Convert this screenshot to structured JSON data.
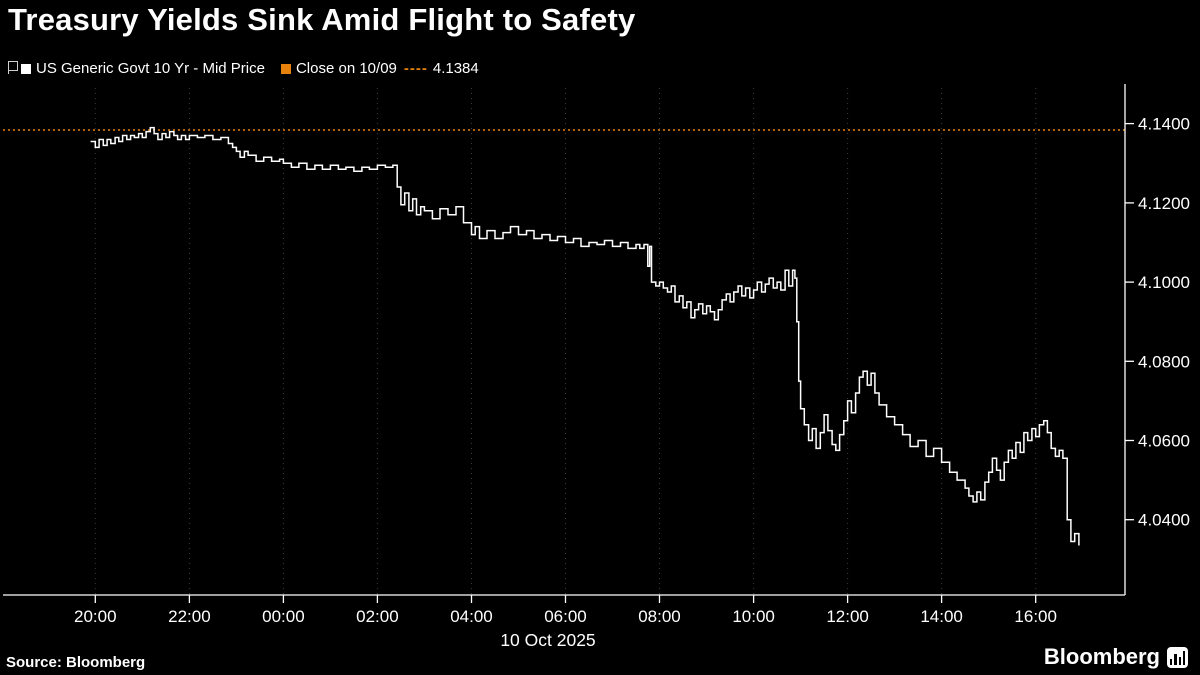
{
  "title": "Treasury Yields Sink Amid Flight to Safety",
  "legend": {
    "series_label": "US Generic Govt 10 Yr - Mid Price",
    "close_label_prefix": "Close on 10/09",
    "close_dashes": "----",
    "close_value": "4.1384",
    "series_color": "#ffffff",
    "close_color": "#e8820c"
  },
  "footer": {
    "source_label": "Source: Bloomberg",
    "brand": "Bloomberg"
  },
  "chart_data": {
    "type": "line",
    "step": true,
    "title": "Treasury Yields Sink Amid Flight to Safety",
    "x_axis_date_label": "10 Oct 2025",
    "x_unit": "hour of session (24 = midnight, 10 Oct 2025)",
    "grid": "vertical-dotted",
    "legend_position": "top-left",
    "xlim": [
      18.1,
      41.9
    ],
    "ylim": [
      4.021,
      4.149
    ],
    "y_ticks": [
      4.14,
      4.12,
      4.1,
      4.08,
      4.06,
      4.04
    ],
    "x_ticks": [
      {
        "t": 20,
        "label": "20:00"
      },
      {
        "t": 22,
        "label": "22:00"
      },
      {
        "t": 24,
        "label": "00:00"
      },
      {
        "t": 26,
        "label": "02:00"
      },
      {
        "t": 28,
        "label": "04:00"
      },
      {
        "t": 30,
        "label": "06:00"
      },
      {
        "t": 32,
        "label": "08:00"
      },
      {
        "t": 34,
        "label": "10:00"
      },
      {
        "t": 36,
        "label": "12:00"
      },
      {
        "t": 38,
        "label": "14:00"
      },
      {
        "t": 40,
        "label": "16:00"
      }
    ],
    "reference_line": {
      "label": "Close on 10/09",
      "value": 4.1384,
      "color": "#e8820c",
      "style": "dotted"
    },
    "series": [
      {
        "name": "US Generic Govt 10 Yr - Mid Price",
        "color": "#ffffff",
        "points": [
          [
            19.9,
            4.1355
          ],
          [
            20.0,
            4.134
          ],
          [
            20.08,
            4.136
          ],
          [
            20.17,
            4.1345
          ],
          [
            20.25,
            4.136
          ],
          [
            20.33,
            4.135
          ],
          [
            20.42,
            4.1365
          ],
          [
            20.5,
            4.1355
          ],
          [
            20.58,
            4.137
          ],
          [
            20.67,
            4.136
          ],
          [
            20.75,
            4.137
          ],
          [
            20.83,
            4.1365
          ],
          [
            20.92,
            4.1375
          ],
          [
            21.0,
            4.1365
          ],
          [
            21.08,
            4.138
          ],
          [
            21.17,
            4.139
          ],
          [
            21.25,
            4.1375
          ],
          [
            21.33,
            4.136
          ],
          [
            21.42,
            4.1375
          ],
          [
            21.5,
            4.1365
          ],
          [
            21.58,
            4.138
          ],
          [
            21.67,
            4.137
          ],
          [
            21.75,
            4.136
          ],
          [
            21.83,
            4.137
          ],
          [
            21.92,
            4.136
          ],
          [
            22.0,
            4.137
          ],
          [
            22.17,
            4.1365
          ],
          [
            22.33,
            4.137
          ],
          [
            22.5,
            4.136
          ],
          [
            22.67,
            4.1365
          ],
          [
            22.83,
            4.135
          ],
          [
            22.92,
            4.134
          ],
          [
            23.0,
            4.133
          ],
          [
            23.08,
            4.1315
          ],
          [
            23.17,
            4.133
          ],
          [
            23.25,
            4.132
          ],
          [
            23.42,
            4.1305
          ],
          [
            23.58,
            4.1315
          ],
          [
            23.75,
            4.1305
          ],
          [
            23.92,
            4.131
          ],
          [
            24.0,
            4.13
          ],
          [
            24.17,
            4.129
          ],
          [
            24.33,
            4.13
          ],
          [
            24.5,
            4.1285
          ],
          [
            24.67,
            4.1295
          ],
          [
            24.83,
            4.1285
          ],
          [
            25.0,
            4.1295
          ],
          [
            25.17,
            4.1285
          ],
          [
            25.33,
            4.129
          ],
          [
            25.5,
            4.128
          ],
          [
            25.67,
            4.129
          ],
          [
            25.83,
            4.1285
          ],
          [
            26.0,
            4.1295
          ],
          [
            26.17,
            4.129
          ],
          [
            26.33,
            4.1295
          ],
          [
            26.42,
            4.124
          ],
          [
            26.5,
            4.1195
          ],
          [
            26.58,
            4.1225
          ],
          [
            26.67,
            4.118
          ],
          [
            26.75,
            4.121
          ],
          [
            26.83,
            4.117
          ],
          [
            26.92,
            4.119
          ],
          [
            27.0,
            4.118
          ],
          [
            27.17,
            4.116
          ],
          [
            27.33,
            4.1185
          ],
          [
            27.5,
            4.117
          ],
          [
            27.67,
            4.119
          ],
          [
            27.83,
            4.115
          ],
          [
            28.0,
            4.112
          ],
          [
            28.08,
            4.114
          ],
          [
            28.17,
            4.111
          ],
          [
            28.33,
            4.113
          ],
          [
            28.5,
            4.111
          ],
          [
            28.67,
            4.1125
          ],
          [
            28.83,
            4.114
          ],
          [
            29.0,
            4.112
          ],
          [
            29.17,
            4.113
          ],
          [
            29.33,
            4.111
          ],
          [
            29.5,
            4.112
          ],
          [
            29.67,
            4.1105
          ],
          [
            29.83,
            4.1115
          ],
          [
            30.0,
            4.11
          ],
          [
            30.17,
            4.111
          ],
          [
            30.33,
            4.109
          ],
          [
            30.5,
            4.11
          ],
          [
            30.67,
            4.1095
          ],
          [
            30.83,
            4.1105
          ],
          [
            31.0,
            4.109
          ],
          [
            31.17,
            4.11
          ],
          [
            31.33,
            4.1085
          ],
          [
            31.5,
            4.1095
          ],
          [
            31.58,
            4.1085
          ],
          [
            31.67,
            4.1095
          ],
          [
            31.75,
            4.104
          ],
          [
            31.79,
            4.109
          ],
          [
            31.83,
            4.1
          ],
          [
            31.92,
            4.099
          ],
          [
            32.0,
            4.1
          ],
          [
            32.08,
            4.0985
          ],
          [
            32.17,
            4.0975
          ],
          [
            32.25,
            4.099
          ],
          [
            32.33,
            4.095
          ],
          [
            32.42,
            4.0965
          ],
          [
            32.5,
            4.0935
          ],
          [
            32.58,
            4.095
          ],
          [
            32.67,
            4.091
          ],
          [
            32.75,
            4.093
          ],
          [
            32.83,
            4.0945
          ],
          [
            32.92,
            4.092
          ],
          [
            33.0,
            4.094
          ],
          [
            33.08,
            4.0925
          ],
          [
            33.17,
            4.0905
          ],
          [
            33.25,
            4.093
          ],
          [
            33.33,
            4.0955
          ],
          [
            33.42,
            4.097
          ],
          [
            33.5,
            4.095
          ],
          [
            33.58,
            4.0975
          ],
          [
            33.67,
            4.099
          ],
          [
            33.75,
            4.0965
          ],
          [
            33.83,
            4.0985
          ],
          [
            33.92,
            4.096
          ],
          [
            34.0,
            4.098
          ],
          [
            34.08,
            4.1
          ],
          [
            34.17,
            4.0975
          ],
          [
            34.25,
            4.0995
          ],
          [
            34.33,
            4.101
          ],
          [
            34.42,
            4.0985
          ],
          [
            34.5,
            4.1
          ],
          [
            34.58,
            4.098
          ],
          [
            34.67,
            4.103
          ],
          [
            34.75,
            4.099
          ],
          [
            34.83,
            4.103
          ],
          [
            34.88,
            4.101
          ],
          [
            34.92,
            4.09
          ],
          [
            34.96,
            4.075
          ],
          [
            35.0,
            4.068
          ],
          [
            35.08,
            4.064
          ],
          [
            35.17,
            4.06
          ],
          [
            35.25,
            4.063
          ],
          [
            35.33,
            4.058
          ],
          [
            35.42,
            4.062
          ],
          [
            35.5,
            4.0665
          ],
          [
            35.58,
            4.0625
          ],
          [
            35.67,
            4.059
          ],
          [
            35.75,
            4.0575
          ],
          [
            35.83,
            4.0615
          ],
          [
            35.92,
            4.065
          ],
          [
            36.0,
            4.07
          ],
          [
            36.08,
            4.067
          ],
          [
            36.17,
            4.072
          ],
          [
            36.25,
            4.076
          ],
          [
            36.33,
            4.0775
          ],
          [
            36.42,
            4.074
          ],
          [
            36.5,
            4.077
          ],
          [
            36.58,
            4.072
          ],
          [
            36.67,
            4.069
          ],
          [
            36.83,
            4.066
          ],
          [
            37.0,
            4.064
          ],
          [
            37.17,
            4.0615
          ],
          [
            37.33,
            4.0585
          ],
          [
            37.5,
            4.06
          ],
          [
            37.67,
            4.056
          ],
          [
            37.83,
            4.058
          ],
          [
            38.0,
            4.0545
          ],
          [
            38.17,
            4.052
          ],
          [
            38.33,
            4.05
          ],
          [
            38.5,
            4.048
          ],
          [
            38.58,
            4.046
          ],
          [
            38.67,
            4.0445
          ],
          [
            38.75,
            4.047
          ],
          [
            38.83,
            4.045
          ],
          [
            38.92,
            4.0495
          ],
          [
            39.0,
            4.052
          ],
          [
            39.08,
            4.0555
          ],
          [
            39.17,
            4.0525
          ],
          [
            39.25,
            4.05
          ],
          [
            39.33,
            4.0545
          ],
          [
            39.42,
            4.0575
          ],
          [
            39.5,
            4.0555
          ],
          [
            39.58,
            4.0595
          ],
          [
            39.67,
            4.057
          ],
          [
            39.75,
            4.062
          ],
          [
            39.83,
            4.06
          ],
          [
            39.92,
            4.063
          ],
          [
            40.0,
            4.061
          ],
          [
            40.08,
            4.064
          ],
          [
            40.17,
            4.065
          ],
          [
            40.25,
            4.062
          ],
          [
            40.33,
            4.058
          ],
          [
            40.42,
            4.056
          ],
          [
            40.5,
            4.0575
          ],
          [
            40.58,
            4.0555
          ],
          [
            40.67,
            4.04
          ],
          [
            40.75,
            4.0345
          ],
          [
            40.83,
            4.0365
          ],
          [
            40.92,
            4.0335
          ]
        ]
      }
    ]
  }
}
